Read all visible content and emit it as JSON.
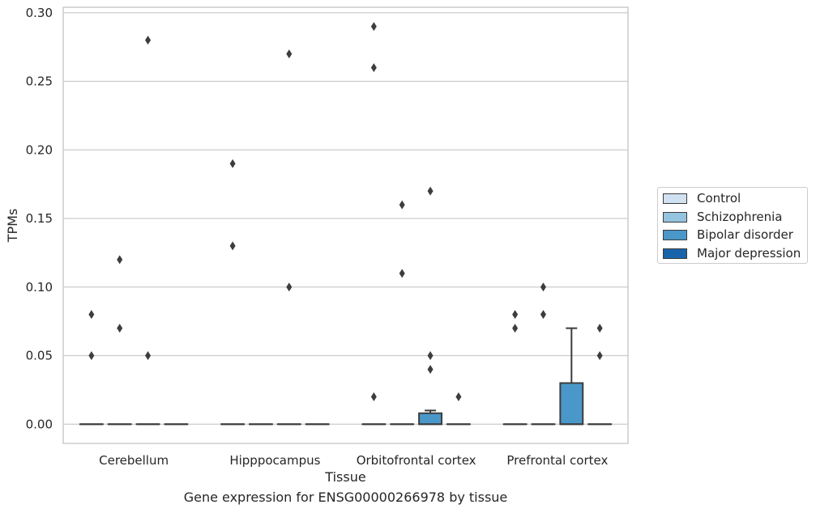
{
  "chart_data": {
    "type": "box",
    "xlabel": "Tissue",
    "ylabel": "TPMs",
    "ylim": [
      -0.014,
      0.304
    ],
    "yticks": [
      0.0,
      0.05,
      0.1,
      0.15,
      0.2,
      0.25,
      0.3
    ],
    "ytick_labels": [
      "0.00",
      "0.05",
      "0.10",
      "0.15",
      "0.20",
      "0.25",
      "0.30"
    ],
    "categories": [
      "Cerebellum",
      "Hipppocampus",
      "Orbitofrontal cortex",
      "Prefrontal cortex"
    ],
    "grid": "horizontal",
    "legend_position": "right",
    "series": [
      {
        "name": "Control",
        "color": "#d0e1f2",
        "boxes": [
          {
            "q1": 0,
            "median": 0,
            "q3": 0,
            "whisker_low": 0,
            "whisker_high": 0,
            "outliers": [
              0.05,
              0.08
            ]
          },
          {
            "q1": 0,
            "median": 0,
            "q3": 0,
            "whisker_low": 0,
            "whisker_high": 0,
            "outliers": [
              0.13,
              0.19
            ]
          },
          {
            "q1": 0,
            "median": 0,
            "q3": 0,
            "whisker_low": 0,
            "whisker_high": 0,
            "outliers": [
              0.02,
              0.26,
              0.29
            ]
          },
          {
            "q1": 0,
            "median": 0,
            "q3": 0,
            "whisker_low": 0,
            "whisker_high": 0,
            "outliers": [
              0.07,
              0.08
            ]
          }
        ]
      },
      {
        "name": "Schizophrenia",
        "color": "#94c4df",
        "boxes": [
          {
            "q1": 0,
            "median": 0,
            "q3": 0,
            "whisker_low": 0,
            "whisker_high": 0,
            "outliers": [
              0.07,
              0.12
            ]
          },
          {
            "q1": 0,
            "median": 0,
            "q3": 0,
            "whisker_low": 0,
            "whisker_high": 0,
            "outliers": []
          },
          {
            "q1": 0,
            "median": 0,
            "q3": 0,
            "whisker_low": 0,
            "whisker_high": 0,
            "outliers": [
              0.11,
              0.16
            ]
          },
          {
            "q1": 0,
            "median": 0,
            "q3": 0,
            "whisker_low": 0,
            "whisker_high": 0,
            "outliers": [
              0.08,
              0.1
            ]
          }
        ]
      },
      {
        "name": "Bipolar disorder",
        "color": "#4a98c9",
        "boxes": [
          {
            "q1": 0,
            "median": 0,
            "q3": 0,
            "whisker_low": 0,
            "whisker_high": 0,
            "outliers": [
              0.05,
              0.28
            ]
          },
          {
            "q1": 0,
            "median": 0,
            "q3": 0,
            "whisker_low": 0,
            "whisker_high": 0,
            "outliers": [
              0.1,
              0.27
            ]
          },
          {
            "q1": 0,
            "median": 0,
            "q3": 0.008,
            "whisker_low": 0,
            "whisker_high": 0.01,
            "outliers": [
              0.04,
              0.05,
              0.17
            ]
          },
          {
            "q1": 0,
            "median": 0,
            "q3": 0.03,
            "whisker_low": 0,
            "whisker_high": 0.07,
            "outliers": []
          }
        ]
      },
      {
        "name": "Major depression",
        "color": "#1764ab",
        "boxes": [
          {
            "q1": 0,
            "median": 0,
            "q3": 0,
            "whisker_low": 0,
            "whisker_high": 0,
            "outliers": []
          },
          {
            "q1": 0,
            "median": 0,
            "q3": 0,
            "whisker_low": 0,
            "whisker_high": 0,
            "outliers": []
          },
          {
            "q1": 0,
            "median": 0,
            "q3": 0,
            "whisker_low": 0,
            "whisker_high": 0,
            "outliers": [
              0.02
            ]
          },
          {
            "q1": 0,
            "median": 0,
            "q3": 0,
            "whisker_low": 0,
            "whisker_high": 0,
            "outliers": [
              0.05,
              0.07
            ]
          }
        ]
      }
    ]
  },
  "caption": "Gene expression for ENSG00000266978 by tissue"
}
